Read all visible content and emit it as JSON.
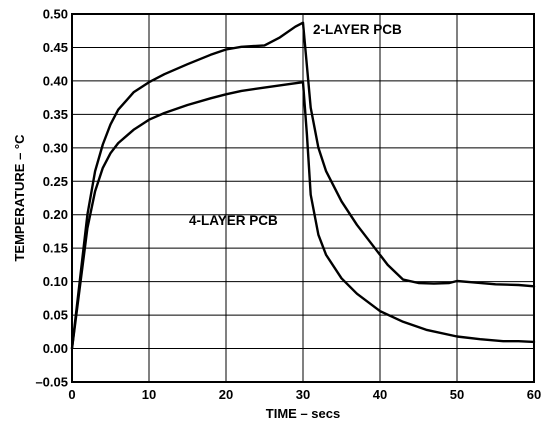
{
  "chart_data": {
    "type": "line",
    "xlabel": "TIME – secs",
    "ylabel": "TEMPERATURE – °C",
    "xlim": [
      0,
      60
    ],
    "ylim": [
      -0.05,
      0.5
    ],
    "x_ticks": [
      "0",
      "10",
      "20",
      "30",
      "40",
      "50",
      "60"
    ],
    "y_ticks": [
      "–0.05",
      "0.00",
      "0.05",
      "0.10",
      "0.15",
      "0.20",
      "0.25",
      "0.30",
      "0.35",
      "0.40",
      "0.45",
      "0.50"
    ],
    "grid": true,
    "series": [
      {
        "name": "2-LAYER PCB",
        "x": [
          0,
          1,
          2,
          3,
          4,
          5,
          6,
          8,
          10,
          12,
          15,
          18,
          20,
          22,
          25,
          27,
          29,
          30,
          31,
          32,
          33,
          35,
          37,
          39,
          41,
          43,
          45,
          47,
          49,
          50,
          52,
          55,
          58,
          60
        ],
        "y": [
          0.0,
          0.1,
          0.2,
          0.265,
          0.305,
          0.335,
          0.357,
          0.383,
          0.398,
          0.41,
          0.425,
          0.439,
          0.447,
          0.451,
          0.453,
          0.465,
          0.481,
          0.487,
          0.36,
          0.3,
          0.265,
          0.22,
          0.185,
          0.155,
          0.125,
          0.103,
          0.098,
          0.097,
          0.098,
          0.101,
          0.099,
          0.096,
          0.095,
          0.093
        ]
      },
      {
        "name": "4-LAYER PCB",
        "x": [
          0,
          1,
          2,
          3,
          4,
          5,
          6,
          8,
          10,
          12,
          15,
          18,
          20,
          22,
          25,
          28,
          30,
          30.5,
          31,
          32,
          33,
          35,
          37,
          40,
          43,
          46,
          50,
          53,
          56,
          58,
          60
        ],
        "y": [
          0.0,
          0.09,
          0.18,
          0.235,
          0.27,
          0.292,
          0.307,
          0.327,
          0.342,
          0.352,
          0.364,
          0.374,
          0.38,
          0.385,
          0.39,
          0.395,
          0.398,
          0.32,
          0.23,
          0.17,
          0.14,
          0.105,
          0.082,
          0.056,
          0.04,
          0.028,
          0.018,
          0.014,
          0.011,
          0.011,
          0.01
        ]
      }
    ],
    "annotations": [
      {
        "text": "2-LAYER PCB",
        "x": 31.3,
        "y": 0.47
      },
      {
        "text": "4-LAYER PCB",
        "x": 15.2,
        "y": 0.185
      }
    ]
  }
}
